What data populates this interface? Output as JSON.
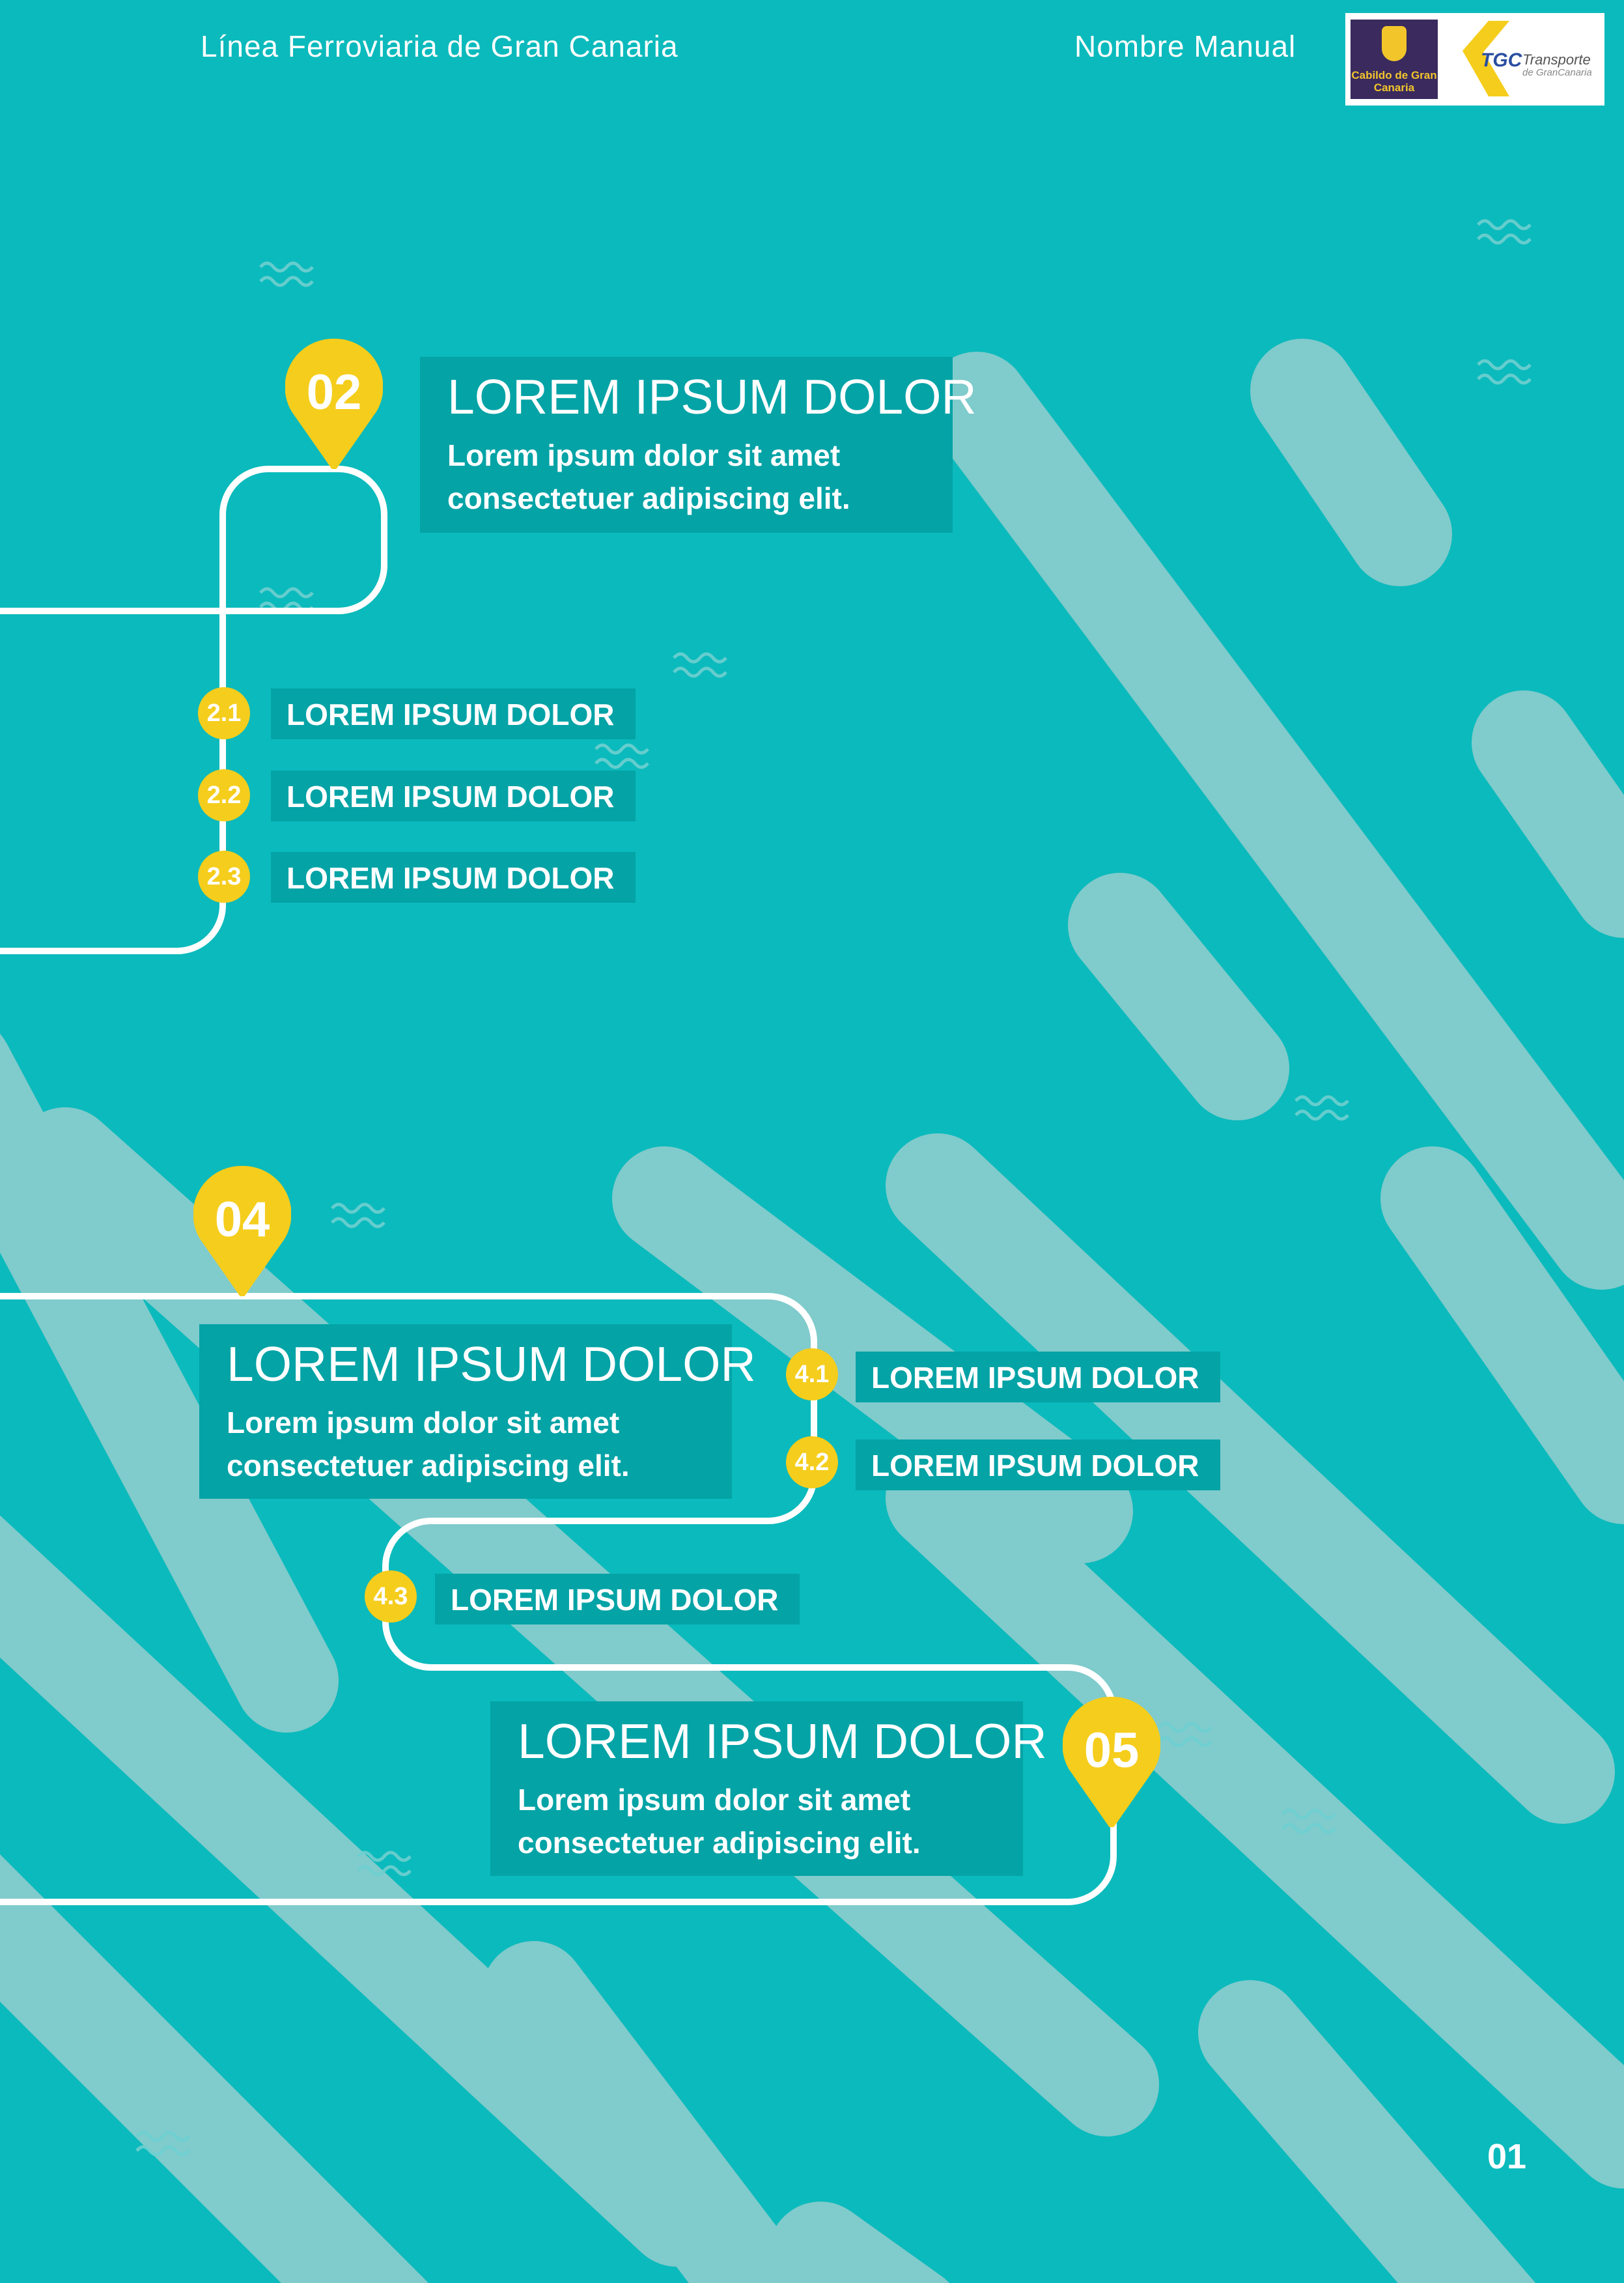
{
  "header": {
    "left_title": "Línea Ferroviaria de Gran Canaria",
    "right_title": "Nombre Manual",
    "logos": {
      "cabildo": "Cabildo de Gran Canaria",
      "tgc_mark": "TGC",
      "tgc_name": "Transporte",
      "tgc_sub": "de GranCanaria"
    }
  },
  "colors": {
    "background": "#0bbabc",
    "stripes": "#80cbcc",
    "box": "#03a3a6",
    "accent": "#f5cd1c",
    "line": "#ffffff"
  },
  "sections": [
    {
      "number": "02",
      "title": "LOREM IPSUM DOLOR",
      "subtitle": "Lorem ipsum dolor sit amet consectetuer adipiscing elit.",
      "items": [
        {
          "number": "2.1",
          "label": "LOREM IPSUM DOLOR"
        },
        {
          "number": "2.2",
          "label": "LOREM IPSUM DOLOR"
        },
        {
          "number": "2.3",
          "label": "LOREM IPSUM DOLOR"
        }
      ]
    },
    {
      "number": "04",
      "title": "LOREM IPSUM DOLOR",
      "subtitle": "Lorem ipsum dolor sit amet consectetuer adipiscing elit.",
      "items": [
        {
          "number": "4.1",
          "label": "LOREM IPSUM DOLOR"
        },
        {
          "number": "4.2",
          "label": "LOREM IPSUM DOLOR"
        },
        {
          "number": "4.3",
          "label": "LOREM IPSUM DOLOR"
        }
      ]
    },
    {
      "number": "05",
      "title": "LOREM IPSUM DOLOR",
      "subtitle": "Lorem ipsum dolor sit amet consectetuer adipiscing elit.",
      "items": []
    }
  ],
  "page_number": "01"
}
